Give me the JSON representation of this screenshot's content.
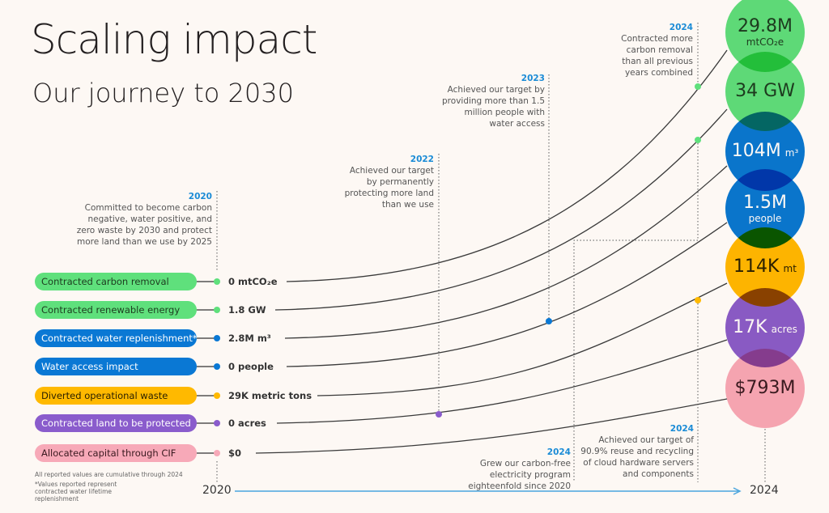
{
  "header": {
    "title": "Scaling impact",
    "subtitle": "Our journey to 2030"
  },
  "metrics": [
    {
      "label": "Contracted carbon removal",
      "start": "0 mtCO₂e",
      "end_value": "29.8M",
      "end_unit": "mtCO₂e",
      "color": "#5fe07c",
      "text": "#1d3b1f"
    },
    {
      "label": "Contracted renewable energy",
      "start": "1.8 GW",
      "end_value": "34 GW",
      "end_unit": "",
      "color": "#5fe07c",
      "text": "#1d3b1f"
    },
    {
      "label": "Contracted water replenishment*",
      "start": "2.8M m³",
      "end_value": "104M",
      "end_unit": "m³",
      "color": "#0a78d4",
      "text": "#ffffff"
    },
    {
      "label": "Water access impact",
      "start": "0 people",
      "end_value": "1.5M",
      "end_unit": "people",
      "color": "#0a78d4",
      "text": "#ffffff"
    },
    {
      "label": "Diverted operational waste",
      "start": "29K metric tons",
      "end_value": "114K",
      "end_unit": "mt",
      "color": "#ffb900",
      "text": "#2b2100"
    },
    {
      "label": "Contracted land to be protected",
      "start": "0 acres",
      "end_value": "17K",
      "end_unit": "acres",
      "color": "#8a5ccc",
      "text": "#ffffff"
    },
    {
      "label": "Allocated capital through CIF",
      "start": "$0",
      "end_value": "$793M",
      "end_unit": "",
      "color": "#f7a9b8",
      "text": "#3a1a20"
    }
  ],
  "milestones": [
    {
      "year": "2020",
      "text": "Committed to become carbon negative, water positive, and zero waste by 2030 and protect more land than we use by 2025"
    },
    {
      "year": "2022",
      "text": "Achieved our target by permanently protecting more land than we use"
    },
    {
      "year": "2023",
      "text": "Achieved our target by providing more than 1.5 million people with water access"
    },
    {
      "year": "2024",
      "text": "Contracted more carbon removal than all previous years combined"
    },
    {
      "year": "2024",
      "text": "Grew our carbon-free electricity program eighteenfold since 2020"
    },
    {
      "year": "2024",
      "text": "Achieved our target of 90.9% reuse and recycling of cloud hardware servers and components"
    }
  ],
  "footnotes": [
    "All reported values are cumulative through 2024",
    "*Values reported represent contracted water lifetime replenishment"
  ],
  "axis": {
    "start": "2020",
    "end": "2024",
    "color": "#4aa5de"
  }
}
